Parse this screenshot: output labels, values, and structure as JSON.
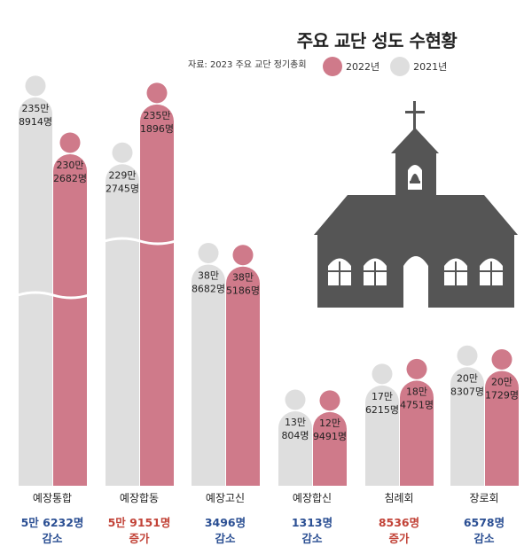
{
  "title": "주요 교단 성도 수현황",
  "source": "자료: 2023 주요 교단 정기총회",
  "legend": {
    "y2022": "2022년",
    "y2021": "2021년"
  },
  "colors": {
    "y2021": "#dedede",
    "y2022": "#cf7a8a",
    "decrease": "#2b4f93",
    "increase": "#c24338",
    "church": "#555555"
  },
  "chart_data": {
    "type": "bar",
    "title": "주요 교단 성도 수현황",
    "categories": [
      "예장통합",
      "예장합동",
      "예장고신",
      "예장합신",
      "침례회",
      "장로회"
    ],
    "series": [
      {
        "name": "2021년",
        "values": [
          2358914,
          2292745,
          388682,
          130804,
          176215,
          208307
        ],
        "labels": [
          [
            "235만",
            "8914명"
          ],
          [
            "229만",
            "2745명"
          ],
          [
            "38만",
            "8682명"
          ],
          [
            "13만",
            "804명"
          ],
          [
            "17만",
            "6215명"
          ],
          [
            "20만",
            "8307명"
          ]
        ]
      },
      {
        "name": "2022년",
        "values": [
          2302682,
          2351896,
          385186,
          129491,
          184751,
          201729
        ],
        "labels": [
          [
            "230만",
            "2682명"
          ],
          [
            "235만",
            "1896명"
          ],
          [
            "38만",
            "5186명"
          ],
          [
            "12만",
            "9491명"
          ],
          [
            "18만",
            "4751명"
          ],
          [
            "20만",
            "1729명"
          ]
        ]
      }
    ],
    "changes": [
      {
        "amount": "5만 6232명",
        "direction": "감소"
      },
      {
        "amount": "5만 9151명",
        "direction": "증가"
      },
      {
        "amount": "3496명",
        "direction": "감소"
      },
      {
        "amount": "1313명",
        "direction": "감소"
      },
      {
        "amount": "8536명",
        "direction": "증가"
      },
      {
        "amount": "6578명",
        "direction": "감소"
      }
    ],
    "axis_break": true,
    "grid": false,
    "legend_position": "top-right"
  }
}
